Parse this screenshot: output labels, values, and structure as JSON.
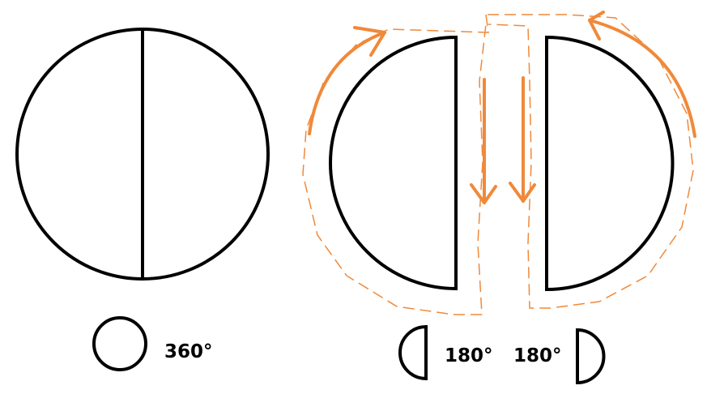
{
  "colors": {
    "stroke": "#000000",
    "arrow": "#f0893a",
    "background": "#ffffff"
  },
  "labels": {
    "full_circle": "360°",
    "left_half": "180°",
    "right_half": "180°"
  }
}
